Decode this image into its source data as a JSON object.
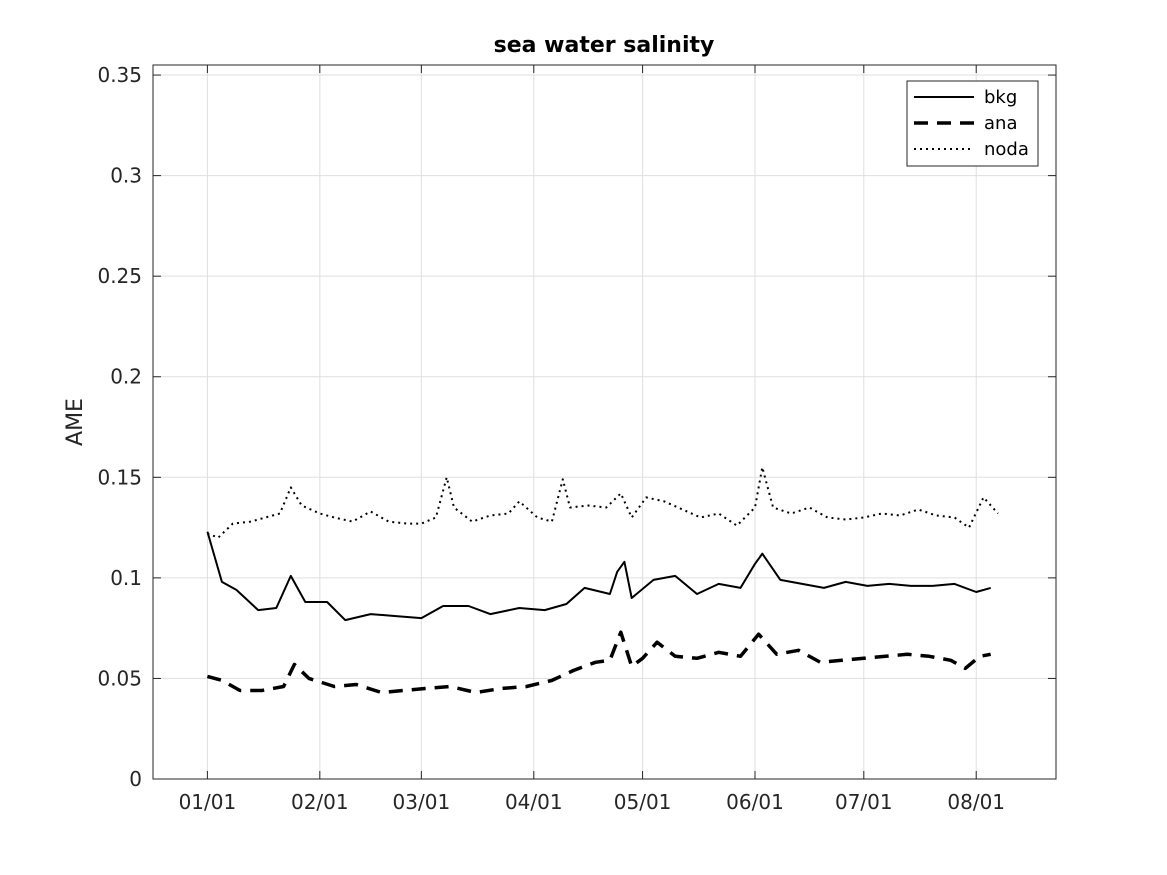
{
  "chart_data": {
    "type": "line",
    "title": "sea water salinity",
    "xlabel": "",
    "ylabel": "AME",
    "ylim": [
      0,
      0.355
    ],
    "xlim": [
      "2021-12-17",
      "2022-08-23"
    ],
    "grid": true,
    "legend_position": "top-right",
    "x_tick_labels": [
      "01/01",
      "02/01",
      "03/01",
      "04/01",
      "05/01",
      "06/01",
      "07/01",
      "08/01"
    ],
    "y_tick_labels": [
      "0",
      "0.05",
      "0.1",
      "0.15",
      "0.2",
      "0.25",
      "0.3",
      "0.35"
    ],
    "series": [
      {
        "name": "bkg",
        "style": "solid",
        "points": [
          [
            "2022-01-01",
            0.123
          ],
          [
            "2022-01-05",
            0.098
          ],
          [
            "2022-01-09",
            0.094
          ],
          [
            "2022-01-15",
            0.084
          ],
          [
            "2022-01-20",
            0.085
          ],
          [
            "2022-01-24",
            0.101
          ],
          [
            "2022-01-28",
            0.088
          ],
          [
            "2022-02-03",
            0.088
          ],
          [
            "2022-02-08",
            0.079
          ],
          [
            "2022-02-15",
            0.082
          ],
          [
            "2022-02-22",
            0.081
          ],
          [
            "2022-03-01",
            0.08
          ],
          [
            "2022-03-07",
            0.086
          ],
          [
            "2022-03-14",
            0.086
          ],
          [
            "2022-03-20",
            0.082
          ],
          [
            "2022-03-28",
            0.085
          ],
          [
            "2022-04-04",
            0.084
          ],
          [
            "2022-04-10",
            0.087
          ],
          [
            "2022-04-15",
            0.095
          ],
          [
            "2022-04-22",
            0.092
          ],
          [
            "2022-04-24",
            0.103
          ],
          [
            "2022-04-26",
            0.108
          ],
          [
            "2022-04-28",
            0.09
          ],
          [
            "2022-05-04",
            0.099
          ],
          [
            "2022-05-10",
            0.101
          ],
          [
            "2022-05-16",
            0.092
          ],
          [
            "2022-05-22",
            0.097
          ],
          [
            "2022-05-28",
            0.095
          ],
          [
            "2022-06-01",
            0.107
          ],
          [
            "2022-06-03",
            0.112
          ],
          [
            "2022-06-08",
            0.099
          ],
          [
            "2022-06-14",
            0.097
          ],
          [
            "2022-06-20",
            0.095
          ],
          [
            "2022-06-26",
            0.098
          ],
          [
            "2022-07-02",
            0.096
          ],
          [
            "2022-07-08",
            0.097
          ],
          [
            "2022-07-14",
            0.096
          ],
          [
            "2022-07-20",
            0.096
          ],
          [
            "2022-07-26",
            0.097
          ],
          [
            "2022-08-01",
            0.093
          ],
          [
            "2022-08-05",
            0.095
          ]
        ]
      },
      {
        "name": "ana",
        "style": "dashed",
        "points": [
          [
            "2022-01-01",
            0.051
          ],
          [
            "2022-01-05",
            0.049
          ],
          [
            "2022-01-10",
            0.044
          ],
          [
            "2022-01-16",
            0.044
          ],
          [
            "2022-01-22",
            0.046
          ],
          [
            "2022-01-25",
            0.057
          ],
          [
            "2022-01-29",
            0.05
          ],
          [
            "2022-02-05",
            0.046
          ],
          [
            "2022-02-11",
            0.047
          ],
          [
            "2022-02-18",
            0.043
          ],
          [
            "2022-02-24",
            0.044
          ],
          [
            "2022-03-02",
            0.045
          ],
          [
            "2022-03-09",
            0.046
          ],
          [
            "2022-03-16",
            0.043
          ],
          [
            "2022-03-23",
            0.045
          ],
          [
            "2022-03-30",
            0.046
          ],
          [
            "2022-04-06",
            0.049
          ],
          [
            "2022-04-12",
            0.054
          ],
          [
            "2022-04-18",
            0.058
          ],
          [
            "2022-04-22",
            0.059
          ],
          [
            "2022-04-25",
            0.073
          ],
          [
            "2022-04-28",
            0.056
          ],
          [
            "2022-05-01",
            0.06
          ],
          [
            "2022-05-05",
            0.068
          ],
          [
            "2022-05-10",
            0.061
          ],
          [
            "2022-05-16",
            0.06
          ],
          [
            "2022-05-22",
            0.063
          ],
          [
            "2022-05-28",
            0.061
          ],
          [
            "2022-06-02",
            0.072
          ],
          [
            "2022-06-07",
            0.062
          ],
          [
            "2022-06-13",
            0.064
          ],
          [
            "2022-06-19",
            0.058
          ],
          [
            "2022-06-25",
            0.059
          ],
          [
            "2022-07-01",
            0.06
          ],
          [
            "2022-07-07",
            0.061
          ],
          [
            "2022-07-13",
            0.062
          ],
          [
            "2022-07-19",
            0.061
          ],
          [
            "2022-07-25",
            0.059
          ],
          [
            "2022-07-29",
            0.055
          ],
          [
            "2022-08-02",
            0.061
          ],
          [
            "2022-08-05",
            0.062
          ]
        ]
      },
      {
        "name": "noda",
        "style": "dotted",
        "points": [
          [
            "2022-01-01",
            0.122
          ],
          [
            "2022-01-04",
            0.12
          ],
          [
            "2022-01-08",
            0.127
          ],
          [
            "2022-01-13",
            0.128
          ],
          [
            "2022-01-17",
            0.13
          ],
          [
            "2022-01-21",
            0.132
          ],
          [
            "2022-01-24",
            0.145
          ],
          [
            "2022-01-27",
            0.136
          ],
          [
            "2022-02-01",
            0.132
          ],
          [
            "2022-02-05",
            0.13
          ],
          [
            "2022-02-10",
            0.128
          ],
          [
            "2022-02-15",
            0.133
          ],
          [
            "2022-02-20",
            0.128
          ],
          [
            "2022-02-25",
            0.127
          ],
          [
            "2022-03-01",
            0.127
          ],
          [
            "2022-03-05",
            0.13
          ],
          [
            "2022-03-08",
            0.15
          ],
          [
            "2022-03-10",
            0.135
          ],
          [
            "2022-03-15",
            0.128
          ],
          [
            "2022-03-20",
            0.131
          ],
          [
            "2022-03-25",
            0.132
          ],
          [
            "2022-03-28",
            0.138
          ],
          [
            "2022-04-02",
            0.13
          ],
          [
            "2022-04-06",
            0.128
          ],
          [
            "2022-04-09",
            0.149
          ],
          [
            "2022-04-11",
            0.135
          ],
          [
            "2022-04-16",
            0.136
          ],
          [
            "2022-04-21",
            0.135
          ],
          [
            "2022-04-25",
            0.142
          ],
          [
            "2022-04-28",
            0.13
          ],
          [
            "2022-05-02",
            0.14
          ],
          [
            "2022-05-07",
            0.138
          ],
          [
            "2022-05-12",
            0.134
          ],
          [
            "2022-05-17",
            0.13
          ],
          [
            "2022-05-22",
            0.132
          ],
          [
            "2022-05-27",
            0.126
          ],
          [
            "2022-06-01",
            0.135
          ],
          [
            "2022-06-03",
            0.155
          ],
          [
            "2022-06-06",
            0.135
          ],
          [
            "2022-06-11",
            0.132
          ],
          [
            "2022-06-16",
            0.135
          ],
          [
            "2022-06-21",
            0.13
          ],
          [
            "2022-06-26",
            0.129
          ],
          [
            "2022-07-01",
            0.13
          ],
          [
            "2022-07-06",
            0.132
          ],
          [
            "2022-07-11",
            0.131
          ],
          [
            "2022-07-16",
            0.134
          ],
          [
            "2022-07-21",
            0.131
          ],
          [
            "2022-07-26",
            0.13
          ],
          [
            "2022-07-30",
            0.125
          ],
          [
            "2022-08-03",
            0.14
          ],
          [
            "2022-08-07",
            0.132
          ]
        ]
      }
    ]
  }
}
